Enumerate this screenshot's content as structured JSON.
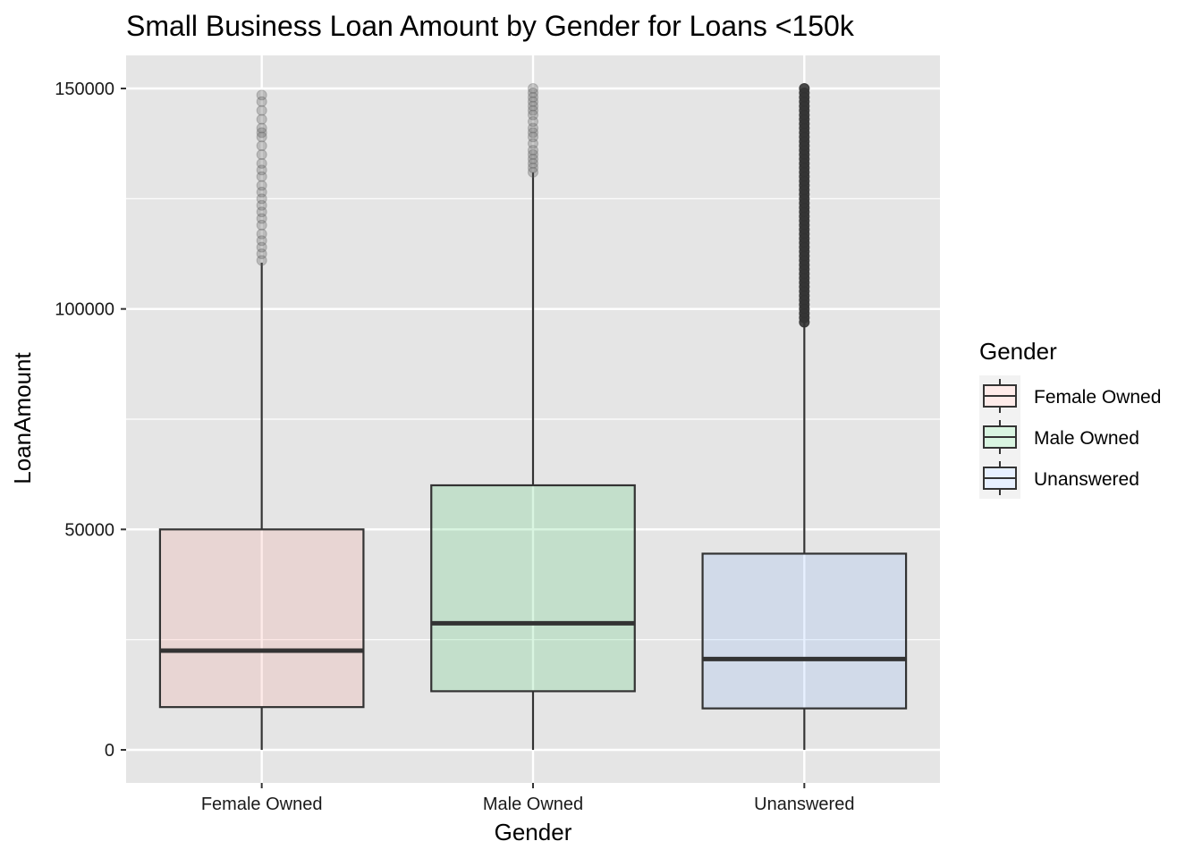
{
  "chart_data": {
    "type": "boxplot",
    "title": "Small Business Loan Amount by Gender for Loans <150k",
    "xlabel": "Gender",
    "ylabel": "LoanAmount",
    "ylim": [
      -7500,
      157500
    ],
    "y_ticks": [
      0,
      50000,
      100000,
      150000
    ],
    "y_tick_labels": [
      "0",
      "50000",
      "100000",
      "150000"
    ],
    "y_minor_ticks": [
      25000,
      75000,
      125000
    ],
    "grid": true,
    "panel_background": "#E5E5E5",
    "grid_color": "#FFFFFF",
    "categories": [
      "Female Owned",
      "Male Owned",
      "Unanswered"
    ],
    "colors": [
      "#F8766D",
      "#00BA38",
      "#619CFF"
    ],
    "fill_alpha": 0.15,
    "boxes": [
      {
        "category": "Female Owned",
        "min": 0,
        "q1": 9700,
        "median": 22500,
        "q3": 50000,
        "max": 110500,
        "outliers_range": [
          110500,
          148500
        ]
      },
      {
        "category": "Male Owned",
        "min": 0,
        "q1": 13300,
        "median": 28700,
        "q3": 60000,
        "max": 131000,
        "outliers_range": [
          131000,
          150000
        ]
      },
      {
        "category": "Unanswered",
        "min": 0,
        "q1": 9400,
        "median": 20600,
        "q3": 44500,
        "max": 97000,
        "outliers_range": [
          97000,
          150000
        ]
      }
    ],
    "outliers": [
      [
        111000,
        112500,
        114000,
        115500,
        117000,
        119000,
        120500,
        122000,
        123500,
        125000,
        126500,
        128000,
        130000,
        131500,
        133000,
        135000,
        137000,
        139000,
        140000,
        141000,
        143000,
        145000,
        147000,
        148500
      ],
      [
        131000,
        132000,
        133000,
        134000,
        135000,
        136000,
        137500,
        139000,
        140000,
        141000,
        142500,
        144000,
        145000,
        146000,
        147000,
        148000,
        149000,
        150000
      ],
      [
        97000,
        98000,
        99000,
        100000,
        101000,
        102000,
        103000,
        104000,
        105000,
        106000,
        107000,
        108000,
        109000,
        110000,
        111000,
        112000,
        113000,
        114000,
        115000,
        116000,
        117000,
        118000,
        119000,
        120000,
        121000,
        122000,
        123000,
        124000,
        125000,
        126000,
        127000,
        128000,
        129000,
        130000,
        131000,
        132000,
        133000,
        134000,
        135000,
        136000,
        137000,
        138000,
        139000,
        140000,
        141000,
        142000,
        143000,
        144000,
        145000,
        146000,
        147000,
        148000,
        149000,
        150000
      ]
    ],
    "legend": {
      "title": "Gender",
      "position": "right",
      "entries": [
        "Female Owned",
        "Male Owned",
        "Unanswered"
      ]
    }
  }
}
